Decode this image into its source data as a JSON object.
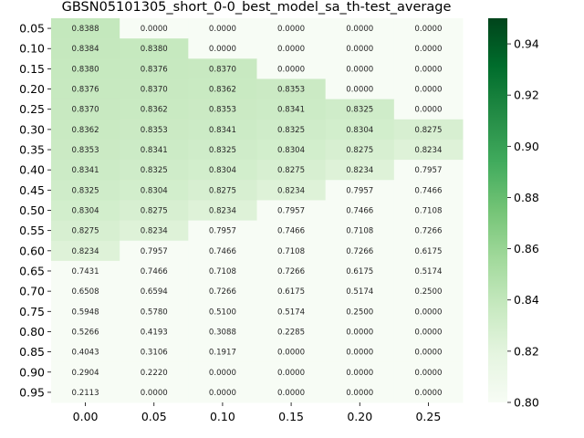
{
  "chart_data": {
    "type": "heatmap",
    "title": "GBSN05101305_short_0-0_best_model_sa_th-test_average",
    "x_tick_labels": [
      "0.00",
      "0.05",
      "0.10",
      "0.15",
      "0.20",
      "0.25"
    ],
    "y_tick_labels": [
      "0.05",
      "0.10",
      "0.15",
      "0.20",
      "0.25",
      "0.30",
      "0.35",
      "0.40",
      "0.45",
      "0.50",
      "0.55",
      "0.60",
      "0.65",
      "0.70",
      "0.75",
      "0.80",
      "0.85",
      "0.90",
      "0.95"
    ],
    "values": [
      [
        "0.8388",
        "0.0000",
        "0.0000",
        "0.0000",
        "0.0000",
        "0.0000"
      ],
      [
        "0.8384",
        "0.8380",
        "0.0000",
        "0.0000",
        "0.0000",
        "0.0000"
      ],
      [
        "0.8380",
        "0.8376",
        "0.8370",
        "0.0000",
        "0.0000",
        "0.0000"
      ],
      [
        "0.8376",
        "0.8370",
        "0.8362",
        "0.8353",
        "0.0000",
        "0.0000"
      ],
      [
        "0.8370",
        "0.8362",
        "0.8353",
        "0.8341",
        "0.8325",
        "0.0000"
      ],
      [
        "0.8362",
        "0.8353",
        "0.8341",
        "0.8325",
        "0.8304",
        "0.8275"
      ],
      [
        "0.8353",
        "0.8341",
        "0.8325",
        "0.8304",
        "0.8275",
        "0.8234"
      ],
      [
        "0.8341",
        "0.8325",
        "0.8304",
        "0.8275",
        "0.8234",
        "0.7957"
      ],
      [
        "0.8325",
        "0.8304",
        "0.8275",
        "0.8234",
        "0.7957",
        "0.7466"
      ],
      [
        "0.8304",
        "0.8275",
        "0.8234",
        "0.7957",
        "0.7466",
        "0.7108"
      ],
      [
        "0.8275",
        "0.8234",
        "0.7957",
        "0.7466",
        "0.7108",
        "0.7266"
      ],
      [
        "0.8234",
        "0.7957",
        "0.7466",
        "0.7108",
        "0.7266",
        "0.6175"
      ],
      [
        "0.7431",
        "0.7466",
        "0.7108",
        "0.7266",
        "0.6175",
        "0.5174"
      ],
      [
        "0.6508",
        "0.6594",
        "0.7266",
        "0.6175",
        "0.5174",
        "0.2500"
      ],
      [
        "0.5948",
        "0.5780",
        "0.5100",
        "0.5174",
        "0.2500",
        "0.0000"
      ],
      [
        "0.5266",
        "0.4193",
        "0.3088",
        "0.2285",
        "0.0000",
        "0.0000"
      ],
      [
        "0.4043",
        "0.3106",
        "0.1917",
        "0.0000",
        "0.0000",
        "0.0000"
      ],
      [
        "0.2904",
        "0.2220",
        "0.0000",
        "0.0000",
        "0.0000",
        "0.0000"
      ],
      [
        "0.2113",
        "0.0000",
        "0.0000",
        "0.0000",
        "0.0000",
        "0.0000"
      ]
    ],
    "colormap": "Greens",
    "vmin": 0.8,
    "vmax": 0.95,
    "colorbar_ticks": [
      "0.80",
      "0.82",
      "0.84",
      "0.86",
      "0.88",
      "0.90",
      "0.92",
      "0.94"
    ],
    "colors": {
      "low": "#f7fcf5",
      "high": "#00441b"
    }
  }
}
